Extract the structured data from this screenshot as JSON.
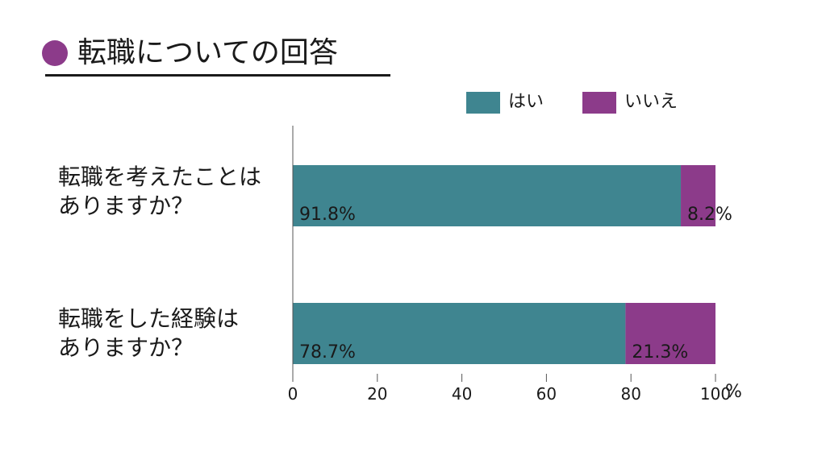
{
  "title": {
    "text": "転職についての回答",
    "dot_color": "#8c3b8a"
  },
  "legend": [
    {
      "label": "はい",
      "color": "#3f8590"
    },
    {
      "label": "いいえ",
      "color": "#8c3b8a"
    }
  ],
  "chart_data": {
    "type": "bar",
    "orientation": "horizontal",
    "stacked": true,
    "categories": [
      "転職を考えたことは\nありますか？",
      "転職をした経験は\nありますか？"
    ],
    "series": [
      {
        "name": "はい",
        "values": [
          91.8,
          78.7
        ],
        "labels": [
          "91.8%",
          "78.7%"
        ],
        "color": "#3f8590"
      },
      {
        "name": "いいえ",
        "values": [
          8.2,
          21.3
        ],
        "labels": [
          "8.2%",
          "21.3%"
        ],
        "color": "#8c3b8a"
      }
    ],
    "xlim": [
      0,
      100
    ],
    "xticks": [
      "0",
      "20",
      "40",
      "60",
      "80",
      "100"
    ],
    "xunit": "%",
    "legend_position": "top-right",
    "grid": false
  }
}
